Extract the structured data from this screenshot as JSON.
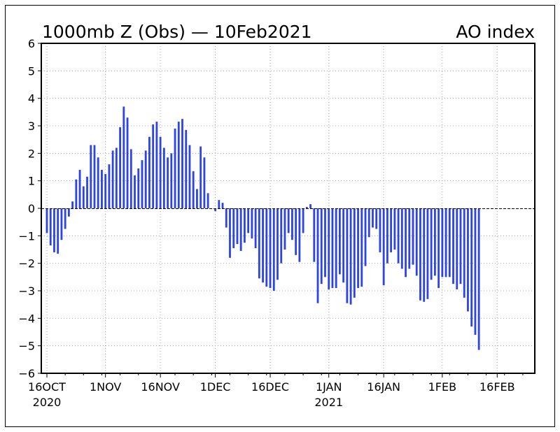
{
  "chart_data": {
    "type": "bar",
    "title": "1000mb Z (Obs) — 10Feb2021",
    "title_right": "AO index",
    "xlabel": "",
    "ylabel": "",
    "ylim": [
      -6,
      6
    ],
    "yticks": [
      "6",
      "5",
      "4",
      "3",
      "2",
      "1",
      "0",
      "−1",
      "−2",
      "−3",
      "−4",
      "−5",
      "−6"
    ],
    "xticks": [
      {
        "label": "16OCT",
        "sub": "2020",
        "day": 0
      },
      {
        "label": "1NOV",
        "sub": "",
        "day": 16
      },
      {
        "label": "16NOV",
        "sub": "",
        "day": 31
      },
      {
        "label": "1DEC",
        "sub": "",
        "day": 46
      },
      {
        "label": "16DEC",
        "sub": "",
        "day": 61
      },
      {
        "label": "1JAN",
        "sub": "2021",
        "day": 77
      },
      {
        "label": "16JAN",
        "sub": "",
        "day": 92
      },
      {
        "label": "1FEB",
        "sub": "",
        "day": 108
      },
      {
        "label": "16FEB",
        "sub": "",
        "day": 123
      }
    ],
    "grid": true,
    "bar_color": "#2b43e8",
    "start_date": "16Oct2020",
    "values": [
      -0.9,
      -1.35,
      -1.6,
      -1.65,
      -1.15,
      -0.75,
      -0.3,
      0.25,
      1.05,
      1.4,
      0.8,
      1.15,
      2.3,
      2.3,
      1.85,
      1.4,
      1.25,
      1.6,
      2.1,
      2.2,
      2.95,
      3.7,
      3.3,
      2.15,
      1.2,
      1.45,
      1.75,
      2.1,
      2.6,
      3.05,
      3.15,
      2.6,
      2.2,
      1.85,
      2.0,
      2.9,
      3.15,
      3.25,
      2.85,
      2.3,
      1.35,
      0.7,
      2.25,
      1.85,
      0.55,
      0.0,
      -0.1,
      0.3,
      0.2,
      -0.7,
      -1.8,
      -1.45,
      -1.3,
      -1.55,
      -1.25,
      -0.9,
      -1.1,
      -1.45,
      -2.55,
      -2.7,
      -2.85,
      -2.9,
      -3.0,
      -2.6,
      -2.0,
      -1.5,
      -0.9,
      -1.15,
      -1.7,
      -1.95,
      -0.9,
      0.05,
      0.15,
      -1.95,
      -3.45,
      -2.75,
      -2.5,
      -2.95,
      -2.9,
      -2.9,
      -2.4,
      -2.7,
      -3.45,
      -3.5,
      -3.25,
      -2.9,
      -2.85,
      -2.1,
      -1.05,
      -0.7,
      -0.75,
      -1.6,
      -2.8,
      -2.0,
      -1.6,
      -1.5,
      -2.0,
      -2.2,
      -2.5,
      -2.2,
      -2.05,
      -2.45,
      -3.35,
      -3.4,
      -3.3,
      -2.6,
      -2.45,
      -2.9,
      -2.5,
      -2.5,
      -2.5,
      -2.75,
      -2.95,
      -2.75,
      -3.25,
      -3.75,
      -4.3,
      -4.6,
      -5.15
    ]
  }
}
